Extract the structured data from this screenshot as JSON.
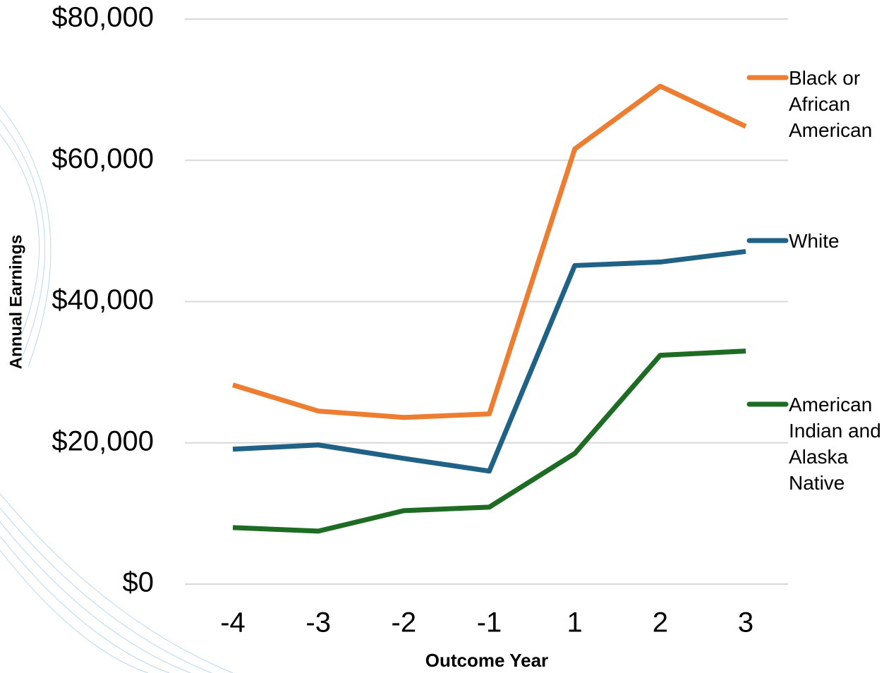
{
  "chart_data": {
    "type": "line",
    "x_label": "Outcome Year",
    "y_label": "Annual Earnings",
    "categories": [
      "-4",
      "-3",
      "-2",
      "-1",
      "1",
      "2",
      "3"
    ],
    "series": [
      {
        "name": "Black or African American",
        "color": "#ed7d31",
        "values": [
          28200,
          24500,
          23600,
          24100,
          61600,
          70500,
          64800
        ]
      },
      {
        "name": "White",
        "color": "#1f6286",
        "values": [
          19100,
          19700,
          17800,
          16000,
          45100,
          45600,
          47100
        ]
      },
      {
        "name": "American Indian and Alaska Native",
        "color": "#1e6b23",
        "values": [
          8000,
          7500,
          10400,
          10900,
          18500,
          32400,
          33000
        ]
      }
    ],
    "ylim": [
      0,
      80000
    ],
    "yticks": [
      {
        "value": 0,
        "label": "$0"
      },
      {
        "value": 20000,
        "label": "$20,000"
      },
      {
        "value": 40000,
        "label": "$40,000"
      },
      {
        "value": 60000,
        "label": "$60,000"
      },
      {
        "value": 80000,
        "label": "$80,000"
      }
    ],
    "grid": true,
    "legend": "right"
  }
}
